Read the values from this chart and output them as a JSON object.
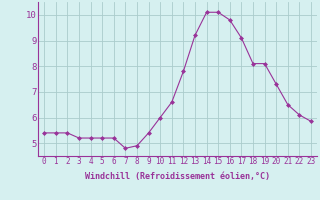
{
  "x": [
    0,
    1,
    2,
    3,
    4,
    5,
    6,
    7,
    8,
    9,
    10,
    11,
    12,
    13,
    14,
    15,
    16,
    17,
    18,
    19,
    20,
    21,
    22,
    23
  ],
  "y": [
    5.4,
    5.4,
    5.4,
    5.2,
    5.2,
    5.2,
    5.2,
    4.8,
    4.9,
    5.4,
    6.0,
    6.6,
    7.8,
    9.2,
    10.1,
    10.1,
    9.8,
    9.1,
    8.1,
    8.1,
    7.3,
    6.5,
    6.1,
    5.85
  ],
  "line_color": "#993399",
  "marker": "D",
  "marker_size": 2.0,
  "bg_color": "#d6f0f0",
  "grid_color": "#aacccc",
  "xlabel": "Windchill (Refroidissement éolien,°C)",
  "xlabel_color": "#993399",
  "tick_color": "#993399",
  "axis_color": "#993399",
  "xlim": [
    -0.5,
    23.5
  ],
  "ylim": [
    4.5,
    10.5
  ],
  "yticks": [
    5,
    6,
    7,
    8,
    9,
    10
  ],
  "xticks": [
    0,
    1,
    2,
    3,
    4,
    5,
    6,
    7,
    8,
    9,
    10,
    11,
    12,
    13,
    14,
    15,
    16,
    17,
    18,
    19,
    20,
    21,
    22,
    23
  ],
  "tick_fontsize": 5.5,
  "xlabel_fontsize": 6.0,
  "ytick_fontsize": 6.5
}
